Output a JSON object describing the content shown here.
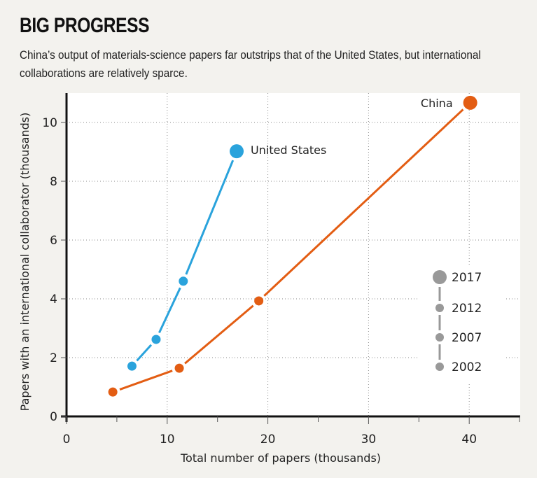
{
  "header": {
    "title": "BIG PROGRESS",
    "subtitle": "China’s output of materials-science papers far outstrips that of the United States, but international collaborations are relatively sparce."
  },
  "chart_data": {
    "type": "line",
    "title": "BIG PROGRESS",
    "xlabel": "Total number of papers (thousands)",
    "ylabel": "Papers with an international collaborator (thousands)",
    "xlim": [
      0,
      45
    ],
    "ylim": [
      0,
      11
    ],
    "x_ticks": [
      0,
      10,
      20,
      30,
      40
    ],
    "x_minor_ticks": [
      5,
      15,
      25,
      35,
      45
    ],
    "y_ticks": [
      0,
      2,
      4,
      6,
      8,
      10
    ],
    "grid": true,
    "series": [
      {
        "name": "United States",
        "color": "#2aa3dc",
        "years": [
          2002,
          2007,
          2012,
          2017
        ],
        "x": [
          6.5,
          8.9,
          11.6,
          16.9
        ],
        "y": [
          1.71,
          2.62,
          4.6,
          9.02
        ]
      },
      {
        "name": "China",
        "color": "#e35d13",
        "years": [
          2002,
          2007,
          2012,
          2017
        ],
        "x": [
          4.6,
          11.2,
          19.1,
          40.1
        ],
        "y": [
          0.83,
          1.64,
          3.93,
          10.67
        ]
      }
    ],
    "legend": {
      "placement": "right",
      "color": "#999999",
      "entries": [
        "2017",
        "2012",
        "2007",
        "2002"
      ]
    }
  }
}
